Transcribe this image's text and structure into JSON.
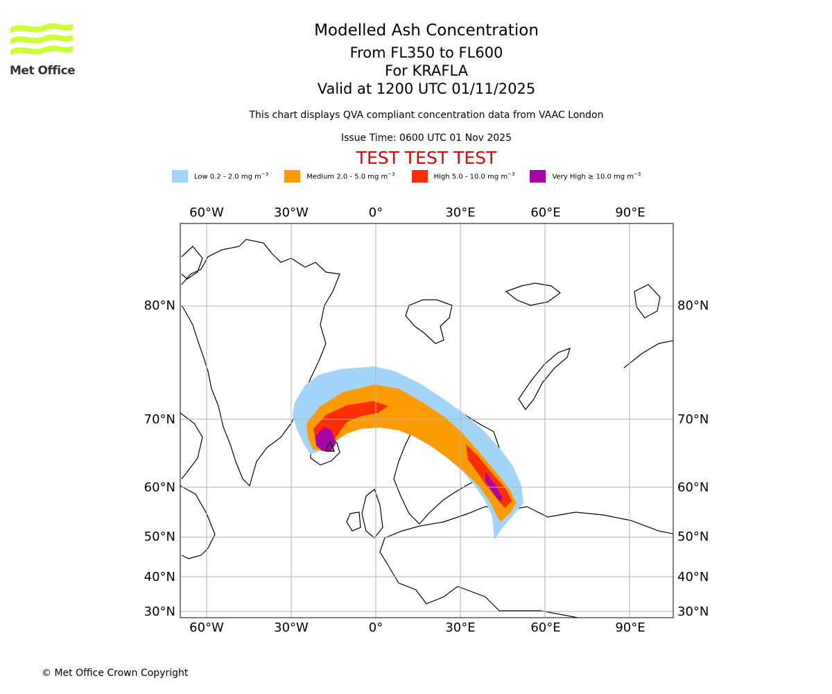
{
  "header": {
    "title": "Modelled Ash Concentration",
    "flight_levels": "From FL350 to FL600",
    "volcano": "For KRAFLA",
    "valid_time": "Valid at 1200 UTC 01/11/2025",
    "description": "This chart displays QVA compliant concentration data from VAAC London",
    "issue_time": "Issue Time: 0600 UTC 01 Nov 2025",
    "test_banner": "TEST TEST TEST",
    "test_color": "#e00000"
  },
  "logo": {
    "text": "Met Office",
    "color": "#ccff33",
    "text_color": "#333333"
  },
  "legend": [
    {
      "label": "Low 0.2 - 2.0 mg m",
      "exp": "−3",
      "color": "#a3d4fa"
    },
    {
      "label": "Medium 2.0 - 5.0 mg m",
      "exp": "−3",
      "color": "#fd9b02"
    },
    {
      "label": "High 5.0 - 10.0 mg m",
      "exp": "−3",
      "color": "#fe2e02"
    },
    {
      "label": "Very High ≥ 10.0 mg m",
      "exp": "−3",
      "color": "#aa00ac"
    }
  ],
  "map": {
    "lon_labels": [
      "60°W",
      "30°W",
      "0°",
      "30°E",
      "60°E",
      "90°E"
    ],
    "lat_labels": [
      "80°N",
      "70°N",
      "60°N",
      "50°N",
      "40°N",
      "30°N"
    ]
  },
  "footer": {
    "copyright": "© Met Office Crown Copyright"
  }
}
